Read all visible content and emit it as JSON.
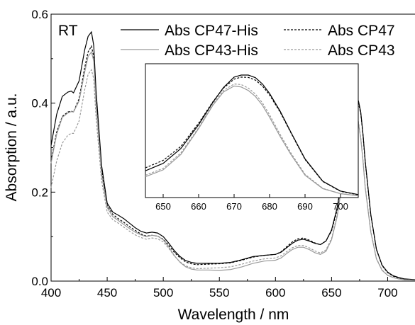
{
  "chart_data": [
    {
      "type": "line",
      "title": "",
      "xlabel": "Wavelength / nm",
      "ylabel": "Absorption / a.u.",
      "xlim": [
        400,
        725
      ],
      "ylim": [
        0.0,
        0.6
      ],
      "x_ticks": [
        400,
        450,
        500,
        550,
        600,
        650,
        700
      ],
      "y_ticks": [
        0.0,
        0.2,
        0.4,
        0.6
      ],
      "x_tick_labels": [
        "400",
        "450",
        "500",
        "550",
        "600",
        "650",
        "700"
      ],
      "y_tick_labels": [
        "0.0",
        "0.2",
        "0.4",
        "0.6"
      ],
      "annotation": "RT",
      "grid": false,
      "legend_position": "top",
      "series": [
        {
          "name": "Abs CP47-His",
          "color": "#000000",
          "dash": "solid",
          "x": [
            400,
            405,
            410,
            415,
            418,
            420,
            425,
            430,
            433,
            436,
            438,
            440,
            445,
            450,
            455,
            460,
            465,
            470,
            475,
            480,
            485,
            490,
            495,
            500,
            505,
            510,
            515,
            520,
            525,
            530,
            540,
            550,
            560,
            570,
            580,
            590,
            600,
            605,
            610,
            615,
            620,
            625,
            630,
            635,
            640,
            645,
            650,
            655,
            660,
            665,
            668,
            670,
            672,
            674,
            676,
            678,
            680,
            685,
            690,
            695,
            700,
            705,
            710,
            715,
            725
          ],
          "y": [
            0.305,
            0.375,
            0.415,
            0.425,
            0.427,
            0.423,
            0.45,
            0.52,
            0.55,
            0.56,
            0.53,
            0.43,
            0.26,
            0.175,
            0.155,
            0.148,
            0.14,
            0.13,
            0.12,
            0.112,
            0.108,
            0.11,
            0.108,
            0.1,
            0.085,
            0.068,
            0.055,
            0.046,
            0.042,
            0.04,
            0.04,
            0.04,
            0.042,
            0.048,
            0.055,
            0.058,
            0.06,
            0.065,
            0.075,
            0.085,
            0.092,
            0.094,
            0.09,
            0.085,
            0.082,
            0.09,
            0.115,
            0.165,
            0.245,
            0.34,
            0.385,
            0.405,
            0.412,
            0.405,
            0.38,
            0.33,
            0.27,
            0.15,
            0.072,
            0.036,
            0.02,
            0.012,
            0.008,
            0.005,
            0.003
          ]
        },
        {
          "name": "Abs CP47",
          "color": "#000000",
          "dash": "dashed",
          "x": [
            400,
            405,
            410,
            415,
            418,
            420,
            425,
            430,
            433,
            436,
            438,
            440,
            445,
            450,
            455,
            460,
            465,
            470,
            475,
            480,
            485,
            490,
            495,
            500,
            505,
            510,
            515,
            520,
            525,
            530,
            540,
            550,
            560,
            570,
            580,
            590,
            600,
            605,
            610,
            615,
            620,
            625,
            630,
            635,
            640,
            645,
            650,
            655,
            660,
            665,
            668,
            670,
            672,
            674,
            676,
            678,
            680,
            685,
            690,
            695,
            700,
            705,
            710,
            715,
            725
          ],
          "y": [
            0.27,
            0.335,
            0.37,
            0.38,
            0.382,
            0.38,
            0.41,
            0.48,
            0.515,
            0.528,
            0.505,
            0.41,
            0.25,
            0.17,
            0.15,
            0.14,
            0.132,
            0.122,
            0.114,
            0.106,
            0.101,
            0.103,
            0.101,
            0.094,
            0.08,
            0.064,
            0.052,
            0.043,
            0.039,
            0.037,
            0.038,
            0.039,
            0.041,
            0.047,
            0.054,
            0.058,
            0.06,
            0.066,
            0.077,
            0.088,
            0.095,
            0.097,
            0.092,
            0.086,
            0.082,
            0.09,
            0.113,
            0.16,
            0.238,
            0.33,
            0.375,
            0.397,
            0.404,
            0.4,
            0.377,
            0.328,
            0.268,
            0.148,
            0.071,
            0.035,
            0.019,
            0.011,
            0.007,
            0.004,
            0.002
          ]
        },
        {
          "name": "Abs CP43-His",
          "color": "#999999",
          "dash": "solid",
          "x": [
            400,
            405,
            410,
            415,
            418,
            420,
            425,
            430,
            433,
            436,
            438,
            440,
            445,
            450,
            455,
            460,
            465,
            470,
            475,
            480,
            485,
            490,
            495,
            500,
            505,
            510,
            515,
            520,
            525,
            530,
            540,
            550,
            560,
            570,
            580,
            590,
            600,
            605,
            610,
            615,
            620,
            625,
            630,
            635,
            640,
            645,
            650,
            655,
            660,
            665,
            668,
            670,
            672,
            674,
            676,
            678,
            680,
            685,
            690,
            695,
            700,
            705,
            710,
            715,
            725
          ],
          "y": [
            0.265,
            0.33,
            0.368,
            0.378,
            0.381,
            0.38,
            0.405,
            0.47,
            0.505,
            0.515,
            0.495,
            0.4,
            0.24,
            0.165,
            0.145,
            0.136,
            0.127,
            0.118,
            0.11,
            0.104,
            0.1,
            0.103,
            0.101,
            0.093,
            0.076,
            0.057,
            0.042,
            0.032,
            0.027,
            0.025,
            0.025,
            0.024,
            0.026,
            0.032,
            0.04,
            0.045,
            0.047,
            0.052,
            0.062,
            0.071,
            0.076,
            0.076,
            0.071,
            0.064,
            0.06,
            0.067,
            0.093,
            0.145,
            0.23,
            0.325,
            0.365,
            0.38,
            0.375,
            0.355,
            0.32,
            0.27,
            0.21,
            0.11,
            0.05,
            0.024,
            0.013,
            0.008,
            0.005,
            0.003,
            0.002
          ]
        },
        {
          "name": "Abs CP43",
          "color": "#999999",
          "dash": "dashed",
          "x": [
            400,
            405,
            410,
            415,
            418,
            420,
            425,
            430,
            433,
            436,
            438,
            440,
            445,
            450,
            455,
            460,
            465,
            470,
            475,
            480,
            485,
            490,
            495,
            500,
            505,
            510,
            515,
            520,
            525,
            530,
            540,
            550,
            560,
            570,
            580,
            590,
            600,
            605,
            610,
            615,
            620,
            625,
            630,
            635,
            640,
            645,
            650,
            655,
            660,
            665,
            668,
            670,
            672,
            674,
            676,
            678,
            680,
            685,
            690,
            695,
            700,
            705,
            710,
            715,
            725
          ],
          "y": [
            0.21,
            0.27,
            0.31,
            0.328,
            0.332,
            0.332,
            0.36,
            0.43,
            0.465,
            0.475,
            0.455,
            0.37,
            0.225,
            0.155,
            0.138,
            0.13,
            0.121,
            0.112,
            0.104,
            0.098,
            0.094,
            0.097,
            0.095,
            0.088,
            0.073,
            0.056,
            0.043,
            0.034,
            0.03,
            0.028,
            0.029,
            0.03,
            0.032,
            0.038,
            0.045,
            0.05,
            0.052,
            0.057,
            0.066,
            0.075,
            0.08,
            0.08,
            0.075,
            0.068,
            0.063,
            0.07,
            0.096,
            0.148,
            0.232,
            0.33,
            0.37,
            0.383,
            0.378,
            0.358,
            0.323,
            0.272,
            0.212,
            0.112,
            0.051,
            0.025,
            0.013,
            0.008,
            0.005,
            0.003,
            0.002
          ]
        }
      ]
    },
    {
      "type": "line",
      "title": "",
      "xlabel": "",
      "ylabel": "",
      "xlim": [
        645,
        705
      ],
      "ylim": [
        0.0,
        0.45
      ],
      "x_ticks": [
        650,
        660,
        670,
        680,
        690,
        700
      ],
      "x_tick_labels": [
        "650",
        "660",
        "670",
        "680",
        "690",
        "700"
      ],
      "grid": false,
      "series": [
        {
          "name": "Abs CP47-His",
          "color": "#000000",
          "dash": "solid",
          "x": [
            645,
            650,
            655,
            660,
            664,
            667,
            670,
            672,
            674,
            676,
            678,
            680,
            683,
            686,
            690,
            695,
            700,
            705
          ],
          "y": [
            0.09,
            0.115,
            0.165,
            0.245,
            0.32,
            0.37,
            0.405,
            0.412,
            0.412,
            0.403,
            0.382,
            0.35,
            0.29,
            0.22,
            0.13,
            0.055,
            0.022,
            0.01
          ]
        },
        {
          "name": "Abs CP47",
          "color": "#000000",
          "dash": "dashed",
          "x": [
            645,
            650,
            655,
            660,
            664,
            667,
            670,
            672,
            674,
            676,
            678,
            680,
            683,
            686,
            690,
            695,
            700,
            705
          ],
          "y": [
            0.1,
            0.125,
            0.172,
            0.25,
            0.322,
            0.368,
            0.398,
            0.405,
            0.404,
            0.395,
            0.375,
            0.345,
            0.287,
            0.218,
            0.128,
            0.054,
            0.021,
            0.009
          ]
        },
        {
          "name": "Abs CP43-His",
          "color": "#999999",
          "dash": "solid",
          "x": [
            645,
            650,
            655,
            660,
            664,
            667,
            670,
            672,
            674,
            676,
            678,
            680,
            683,
            686,
            690,
            695,
            700,
            705
          ],
          "y": [
            0.07,
            0.093,
            0.145,
            0.232,
            0.31,
            0.355,
            0.375,
            0.372,
            0.36,
            0.34,
            0.31,
            0.27,
            0.205,
            0.145,
            0.075,
            0.03,
            0.013,
            0.006
          ]
        },
        {
          "name": "Abs CP43",
          "color": "#999999",
          "dash": "dashed",
          "x": [
            645,
            650,
            655,
            660,
            664,
            667,
            670,
            672,
            674,
            676,
            678,
            680,
            683,
            686,
            690,
            695,
            700,
            705
          ],
          "y": [
            0.075,
            0.098,
            0.15,
            0.235,
            0.315,
            0.36,
            0.382,
            0.38,
            0.368,
            0.348,
            0.318,
            0.278,
            0.212,
            0.15,
            0.078,
            0.031,
            0.013,
            0.006
          ]
        }
      ]
    }
  ]
}
